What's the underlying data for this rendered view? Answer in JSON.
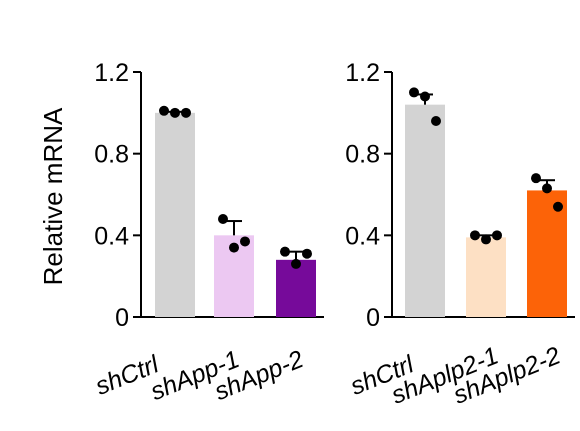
{
  "chart_data": [
    {
      "type": "bar",
      "ylabel": "Relative mRNA",
      "ylim": [
        0,
        1.2
      ],
      "yticks": [
        "0",
        "0.4",
        "0.8",
        "1.2"
      ],
      "categories": [
        {
          "prefix": "sh",
          "gene": "Ctrl",
          "suffix": ""
        },
        {
          "prefix": "sh",
          "gene": "App",
          "suffix": "-1"
        },
        {
          "prefix": "sh",
          "gene": "App",
          "suffix": "-2"
        }
      ],
      "values": [
        1.0,
        0.4,
        0.28
      ],
      "errors": [
        0.005,
        0.07,
        0.04
      ],
      "points": [
        [
          1.01,
          1.0,
          1.0
        ],
        [
          0.48,
          0.34,
          0.37
        ],
        [
          0.32,
          0.26,
          0.31
        ]
      ],
      "colors": [
        "#d3d3d3",
        "#ecc8f2",
        "#760a9a"
      ]
    },
    {
      "type": "bar",
      "ylabel": "",
      "ylim": [
        0,
        1.2
      ],
      "yticks": [
        "0",
        "0.4",
        "0.8",
        "1.2"
      ],
      "categories": [
        {
          "prefix": "sh",
          "gene": "Ctrl",
          "suffix": ""
        },
        {
          "prefix": "sh",
          "gene": "Aplp2",
          "suffix": "-1"
        },
        {
          "prefix": "sh",
          "gene": "Aplp2",
          "suffix": "-2"
        }
      ],
      "values": [
        1.04,
        0.39,
        0.62
      ],
      "errors": [
        0.05,
        0.01,
        0.05
      ],
      "points": [
        [
          1.1,
          1.08,
          0.96
        ],
        [
          0.4,
          0.38,
          0.4
        ],
        [
          0.68,
          0.63,
          0.54
        ]
      ],
      "colors": [
        "#d3d3d3",
        "#fde0c4",
        "#fc6308"
      ]
    }
  ]
}
